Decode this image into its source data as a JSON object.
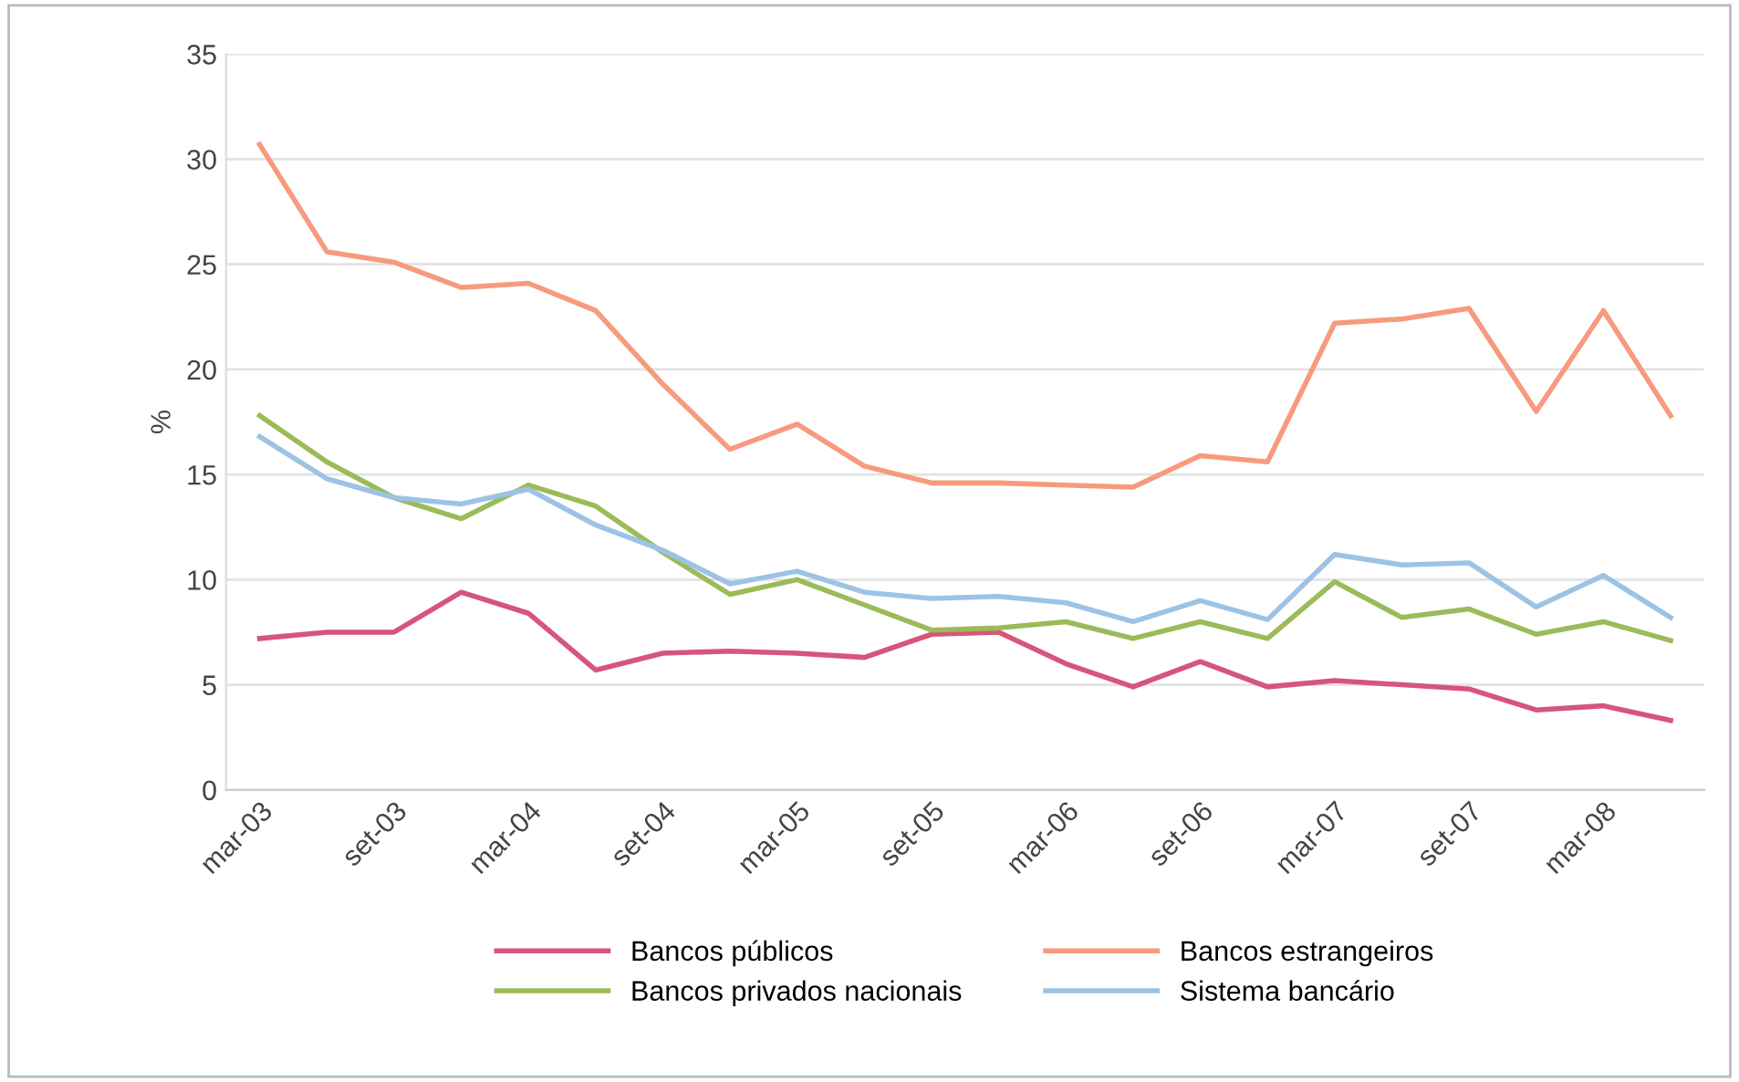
{
  "chart_data": {
    "type": "line",
    "ylabel": "%",
    "categories": [
      "mar-03",
      null,
      "set-03",
      null,
      "mar-04",
      null,
      "set-04",
      null,
      "mar-05",
      null,
      "set-05",
      null,
      "mar-06",
      null,
      "set-06",
      null,
      "mar-07",
      null,
      "set-07",
      null,
      "mar-08",
      null
    ],
    "series": [
      {
        "name": "Bancos públicos",
        "color": "#d6557a",
        "values": [
          7.2,
          7.5,
          7.5,
          9.4,
          8.4,
          5.7,
          6.5,
          6.6,
          6.5,
          6.3,
          7.4,
          7.5,
          6.0,
          4.9,
          6.1,
          4.9,
          5.2,
          5.0,
          4.8,
          3.8,
          4.0,
          3.3
        ]
      },
      {
        "name": "Bancos privados nacionais",
        "color": "#9bbb59",
        "values": [
          17.8,
          15.6,
          13.9,
          12.9,
          14.5,
          13.5,
          11.3,
          9.3,
          10.0,
          8.8,
          7.6,
          7.7,
          8.0,
          7.2,
          8.0,
          7.2,
          9.9,
          8.2,
          8.6,
          7.4,
          8.0,
          7.1
        ]
      },
      {
        "name": "Bancos estrangeiros",
        "color": "#f79a7e",
        "values": [
          30.7,
          25.6,
          25.1,
          23.9,
          24.1,
          22.8,
          19.3,
          16.2,
          17.4,
          15.4,
          14.6,
          14.6,
          14.5,
          14.4,
          15.9,
          15.6,
          22.2,
          22.4,
          22.9,
          18.0,
          22.8,
          17.8
        ]
      },
      {
        "name": "Sistema bancário",
        "color": "#9cc3e5",
        "values": [
          16.8,
          14.8,
          13.9,
          13.6,
          14.3,
          12.6,
          11.4,
          9.8,
          10.4,
          9.4,
          9.1,
          9.2,
          8.9,
          8.0,
          9.0,
          8.1,
          11.2,
          10.7,
          10.8,
          8.7,
          10.2,
          8.2
        ]
      }
    ],
    "ylim": [
      0,
      35
    ],
    "yticks": [
      0,
      5,
      10,
      15,
      20,
      25,
      30,
      35
    ],
    "grid": "y",
    "legend": "bottom",
    "marker": "none",
    "line_style": "solid"
  }
}
